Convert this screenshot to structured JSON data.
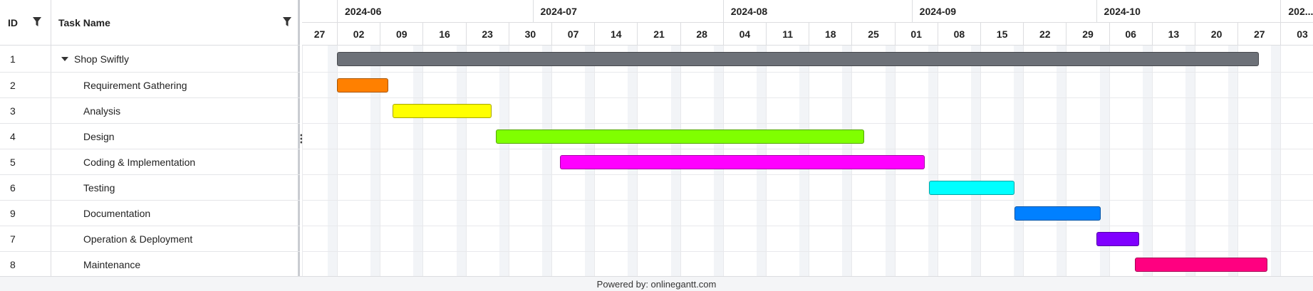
{
  "grid": {
    "columns": {
      "id": "ID",
      "name": "Task Name"
    },
    "rows": [
      {
        "id": "1",
        "name": "Shop Swiftly",
        "parent": true
      },
      {
        "id": "2",
        "name": "Requirement Gathering"
      },
      {
        "id": "3",
        "name": "Analysis"
      },
      {
        "id": "4",
        "name": "Design"
      },
      {
        "id": "5",
        "name": "Coding & Implementation"
      },
      {
        "id": "6",
        "name": "Testing"
      },
      {
        "id": "9",
        "name": "Documentation"
      },
      {
        "id": "7",
        "name": "Operation & Deployment"
      },
      {
        "id": "8",
        "name": "Maintenance"
      }
    ]
  },
  "scale": {
    "months": [
      "2024-06",
      "2024-07",
      "2024-08",
      "2024-09",
      "2024-10",
      "202..."
    ],
    "weeks": [
      "27",
      "02",
      "09",
      "16",
      "23",
      "30",
      "07",
      "14",
      "21",
      "28",
      "04",
      "11",
      "18",
      "25",
      "01",
      "08",
      "15",
      "22",
      "29",
      "06",
      "13",
      "20",
      "27",
      "03"
    ]
  },
  "bars": [
    {
      "task": "Shop Swiftly",
      "color": "#6d7178",
      "start_week": 1.0,
      "end_week": 22.5
    },
    {
      "task": "Requirement Gathering",
      "color": "#ff8000",
      "start_week": 1.0,
      "end_week": 2.2
    },
    {
      "task": "Analysis",
      "color": "#ffff00",
      "start_week": 2.3,
      "end_week": 4.6
    },
    {
      "task": "Design",
      "color": "#80ff00",
      "start_week": 4.7,
      "end_week": 13.3
    },
    {
      "task": "Coding & Implementation",
      "color": "#ff00ff",
      "start_week": 6.2,
      "end_week": 14.7
    },
    {
      "task": "Testing",
      "color": "#00ffff",
      "start_week": 14.8,
      "end_week": 16.8
    },
    {
      "task": "Documentation",
      "color": "#0080ff",
      "start_week": 16.8,
      "end_week": 18.8
    },
    {
      "task": "Operation & Deployment",
      "color": "#8000ff",
      "start_week": 18.7,
      "end_week": 19.7
    },
    {
      "task": "Maintenance",
      "color": "#ff0080",
      "start_week": 19.6,
      "end_week": 22.7
    }
  ],
  "footer": {
    "text": "Powered by: onlinegantt.com"
  }
}
